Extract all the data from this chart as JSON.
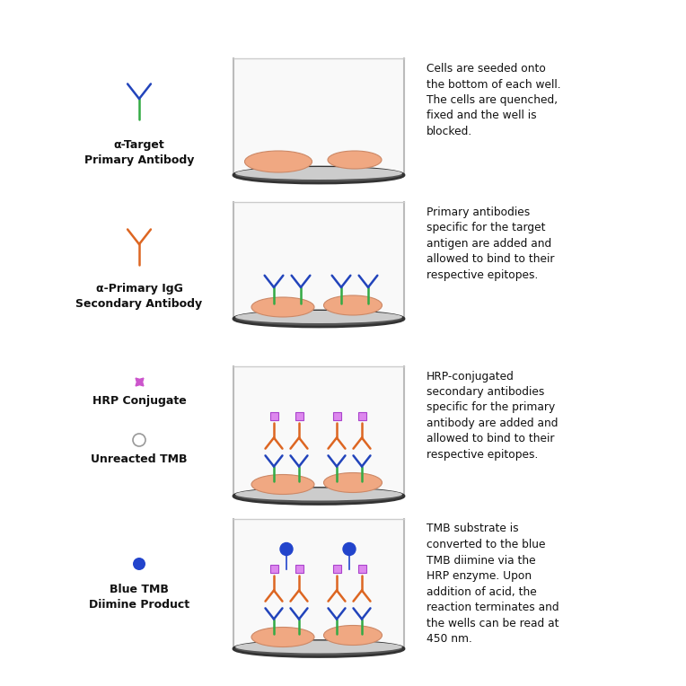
{
  "background_color": "#ffffff",
  "rows": [
    {
      "legend_label1": "α-Target",
      "legend_label2": "Primary Antibody",
      "description": "Cells are seeded onto\nthe bottom of each well.\nThe cells are quenched,\nfixed and the well is\nblocked.",
      "well_content": "cells_only"
    },
    {
      "legend_label1": "α-Primary IgG",
      "legend_label2": "Secondary Antibody",
      "description": "Primary antibodies\nspecific for the target\nantigen are added and\nallowed to bind to their\nrespective epitopes.",
      "well_content": "cells_primary"
    },
    {
      "legend_label1": "HRP Conjugate",
      "legend_label2": "",
      "legend_label3": "Unreacted TMB",
      "description": "HRP-conjugated\nsecondary antibodies\nspecific for the primary\nantibody are added and\nallowed to bind to their\nrespective epitopes.",
      "well_content": "cells_secondary"
    },
    {
      "legend_label1": "Blue TMB",
      "legend_label2": "Diimine Product",
      "description": "TMB substrate is\nconverted to the blue\nTMB diimine via the\nHRP enzyme. Upon\naddition of acid, the\nreaction terminates and\nthe wells can be read at\n450 nm.",
      "well_content": "cells_tmb"
    }
  ],
  "colors": {
    "well_border": "#bbbbbb",
    "well_fill": "#f8f8f8",
    "well_bottom": "#333333",
    "cell_fill": "#f0a882",
    "cell_stroke": "#cc8866",
    "antibody_green": "#33aa44",
    "antibody_blue": "#2244bb",
    "antibody_orange": "#dd6622",
    "antibody_red": "#cc3333",
    "hrp_pink": "#cc55cc",
    "tmb_blue": "#2244cc",
    "tmb_circle": "#aaaaaa",
    "text_color": "#111111"
  }
}
